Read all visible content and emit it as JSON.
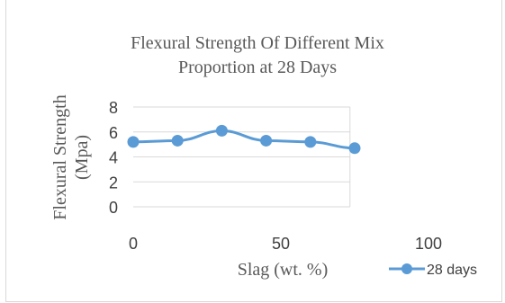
{
  "chart_data": {
    "type": "line",
    "title_lines": [
      "Flexural Strength Of Different Mix",
      "Proportion at 28 Days"
    ],
    "xlabel": "Slag (wt. %)",
    "ylabel_lines": [
      "Flexural Strength",
      "(Mpa)"
    ],
    "xlim": [
      0,
      100
    ],
    "ylim": [
      0,
      8
    ],
    "xticks": [
      "0",
      "50",
      "100"
    ],
    "yticks": [
      "0",
      "2",
      "4",
      "6",
      "8"
    ],
    "grid": true,
    "legend_position": "bottom-right",
    "series": [
      {
        "name": "28 days",
        "color": "#5B9BD5",
        "x": [
          0,
          15,
          30,
          45,
          60,
          75
        ],
        "y": [
          5.2,
          5.3,
          6.1,
          5.3,
          5.2,
          4.7
        ]
      }
    ]
  }
}
